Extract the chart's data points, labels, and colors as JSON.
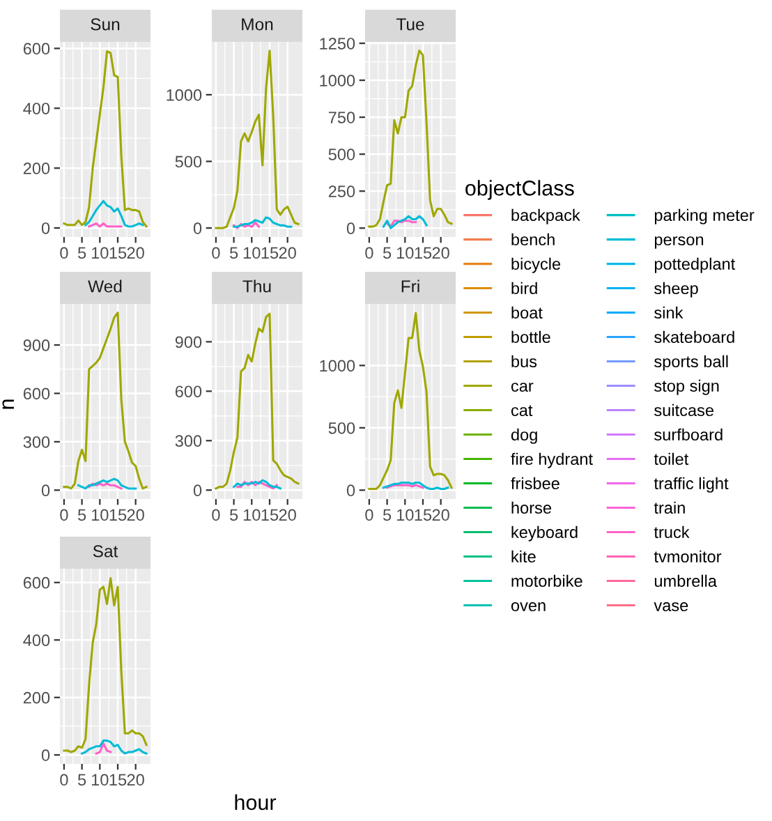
{
  "chart_data": [
    {
      "type": "line",
      "title": "Sun",
      "x": [
        0,
        1,
        2,
        3,
        4,
        5,
        6,
        7,
        8,
        9,
        10,
        11,
        12,
        13,
        14,
        15,
        16,
        17,
        18,
        19,
        20,
        21,
        22,
        23
      ],
      "xlim": [
        -1.15,
        24.15
      ],
      "xticks": [
        0,
        5,
        10,
        15,
        20
      ],
      "ylim": [
        -30,
        622
      ],
      "yticks": [
        0,
        200,
        400,
        600
      ],
      "grid": true,
      "series": [
        {
          "color": "#FF61C7",
          "values": [
            null,
            null,
            null,
            null,
            null,
            null,
            null,
            5,
            10,
            15,
            5,
            15,
            5,
            5,
            5,
            5,
            5,
            null,
            null,
            null,
            null,
            null,
            null,
            null
          ]
        },
        {
          "color": "#00BCD6",
          "values": [
            null,
            null,
            null,
            null,
            null,
            null,
            10,
            20,
            40,
            60,
            75,
            90,
            75,
            70,
            55,
            65,
            40,
            10,
            5,
            5,
            10,
            15,
            10,
            null
          ]
        },
        {
          "color": "#9FA700",
          "values": [
            15,
            10,
            10,
            10,
            25,
            10,
            20,
            70,
            200,
            290,
            380,
            470,
            590,
            585,
            510,
            505,
            240,
            60,
            65,
            60,
            60,
            55,
            20,
            5
          ]
        }
      ]
    },
    {
      "type": "line",
      "title": "Mon",
      "x": [
        0,
        1,
        2,
        3,
        4,
        5,
        6,
        7,
        8,
        9,
        10,
        11,
        12,
        13,
        14,
        15,
        16,
        17,
        18,
        19,
        20,
        21,
        22,
        23
      ],
      "xlim": [
        -1.15,
        24.15
      ],
      "xticks": [
        0,
        5,
        10,
        15,
        20
      ],
      "ylim": [
        -67,
        1397
      ],
      "yticks": [
        0,
        500,
        1000
      ],
      "grid": true,
      "series": [
        {
          "color": "#FF61C7",
          "values": [
            null,
            null,
            null,
            null,
            null,
            20,
            0,
            30,
            10,
            20,
            10,
            40,
            10,
            null,
            null,
            null,
            null,
            null,
            null,
            null,
            null,
            null,
            null,
            null
          ]
        },
        {
          "color": "#00BCD6",
          "values": [
            null,
            null,
            null,
            null,
            null,
            10,
            10,
            20,
            30,
            30,
            40,
            60,
            50,
            40,
            80,
            70,
            40,
            30,
            20,
            20,
            10,
            10,
            null,
            null
          ]
        },
        {
          "color": "#9FA700",
          "values": [
            0,
            0,
            0,
            10,
            80,
            150,
            280,
            650,
            710,
            650,
            720,
            800,
            850,
            470,
            1050,
            1330,
            840,
            140,
            100,
            140,
            160,
            100,
            40,
            30
          ]
        }
      ]
    },
    {
      "type": "line",
      "title": "Tue",
      "x": [
        0,
        1,
        2,
        3,
        4,
        5,
        6,
        7,
        8,
        9,
        10,
        11,
        12,
        13,
        14,
        15,
        16,
        17,
        18,
        19,
        20,
        21,
        22,
        23
      ],
      "xlim": [
        -1.15,
        24.15
      ],
      "xticks": [
        0,
        5,
        10,
        15,
        20
      ],
      "ylim": [
        -60,
        1260
      ],
      "yticks": [
        0,
        250,
        500,
        750,
        1000,
        1250
      ],
      "grid": true,
      "series": [
        {
          "color": "#FF61C7",
          "values": [
            null,
            null,
            null,
            null,
            null,
            30,
            10,
            50,
            50,
            40,
            50,
            50,
            40,
            40,
            null,
            null,
            null,
            null,
            null,
            null,
            null,
            null,
            null,
            null
          ]
        },
        {
          "color": "#00BCD6",
          "values": [
            null,
            null,
            null,
            null,
            10,
            50,
            0,
            20,
            40,
            50,
            60,
            80,
            60,
            60,
            80,
            60,
            20,
            null,
            null,
            null,
            null,
            null,
            null,
            null
          ]
        },
        {
          "color": "#9FA700",
          "values": [
            10,
            10,
            20,
            60,
            180,
            290,
            300,
            730,
            640,
            750,
            750,
            930,
            960,
            1100,
            1200,
            1170,
            720,
            190,
            80,
            130,
            130,
            90,
            40,
            30
          ]
        }
      ]
    },
    {
      "type": "line",
      "title": "Wed",
      "x": [
        0,
        1,
        2,
        3,
        4,
        5,
        6,
        7,
        8,
        9,
        10,
        11,
        12,
        13,
        14,
        15,
        16,
        17,
        18,
        19,
        20,
        21,
        22,
        23
      ],
      "xlim": [
        -1.15,
        24.15
      ],
      "xticks": [
        0,
        5,
        10,
        15,
        20
      ],
      "ylim": [
        -55,
        1155
      ],
      "yticks": [
        0,
        300,
        600,
        900
      ],
      "grid": true,
      "series": [
        {
          "color": "#FF61C7",
          "values": [
            null,
            null,
            null,
            null,
            null,
            null,
            null,
            20,
            40,
            30,
            40,
            30,
            40,
            30,
            30,
            20,
            10,
            null,
            null,
            null,
            null,
            null,
            null,
            null
          ]
        },
        {
          "color": "#00BCD6",
          "values": [
            null,
            null,
            null,
            null,
            30,
            20,
            10,
            30,
            30,
            40,
            50,
            60,
            50,
            60,
            70,
            60,
            30,
            20,
            10,
            10,
            10,
            null,
            null,
            null
          ]
        },
        {
          "color": "#9FA700",
          "values": [
            20,
            20,
            10,
            40,
            180,
            250,
            180,
            750,
            770,
            790,
            820,
            880,
            940,
            1000,
            1070,
            1100,
            560,
            300,
            240,
            170,
            150,
            70,
            10,
            20
          ]
        }
      ]
    },
    {
      "type": "line",
      "title": "Thu",
      "x": [
        0,
        1,
        2,
        3,
        4,
        5,
        6,
        7,
        8,
        9,
        10,
        11,
        12,
        13,
        14,
        15,
        16,
        17,
        18,
        19,
        20,
        21,
        22,
        23
      ],
      "xlim": [
        -1.15,
        24.15
      ],
      "xticks": [
        0,
        5,
        10,
        15,
        20
      ],
      "ylim": [
        -54,
        1130
      ],
      "yticks": [
        0,
        300,
        600,
        900
      ],
      "grid": true,
      "series": [
        {
          "color": "#FF61C7",
          "values": [
            null,
            null,
            null,
            null,
            null,
            null,
            20,
            20,
            50,
            30,
            50,
            30,
            50,
            40,
            30,
            20,
            10,
            30,
            null,
            null,
            null,
            null,
            null,
            null
          ]
        },
        {
          "color": "#00BCD6",
          "values": [
            null,
            null,
            null,
            null,
            null,
            20,
            40,
            30,
            40,
            40,
            40,
            50,
            40,
            60,
            50,
            30,
            20,
            20,
            10,
            null,
            null,
            null,
            null,
            null
          ]
        },
        {
          "color": "#9FA700",
          "values": [
            10,
            20,
            20,
            40,
            120,
            230,
            320,
            720,
            740,
            820,
            780,
            890,
            980,
            960,
            1050,
            1070,
            180,
            160,
            120,
            90,
            80,
            70,
            50,
            40
          ]
        }
      ]
    },
    {
      "type": "line",
      "title": "Fri",
      "x": [
        0,
        1,
        2,
        3,
        4,
        5,
        6,
        7,
        8,
        9,
        10,
        11,
        12,
        13,
        14,
        15,
        16,
        17,
        18,
        19,
        20,
        21,
        22,
        23
      ],
      "xlim": [
        -1.15,
        24.15
      ],
      "xticks": [
        0,
        5,
        10,
        15,
        20
      ],
      "ylim": [
        -71,
        1494
      ],
      "yticks": [
        0,
        500,
        1000
      ],
      "grid": true,
      "series": [
        {
          "color": "#FF61C7",
          "values": [
            null,
            null,
            null,
            null,
            null,
            20,
            30,
            40,
            40,
            40,
            40,
            40,
            30,
            40,
            30,
            20,
            null,
            null,
            null,
            null,
            null,
            null,
            null,
            null
          ]
        },
        {
          "color": "#00BCD6",
          "values": [
            null,
            null,
            null,
            null,
            20,
            30,
            40,
            50,
            50,
            60,
            60,
            60,
            50,
            60,
            60,
            40,
            20,
            10,
            10,
            20,
            10,
            10,
            20,
            null
          ]
        },
        {
          "color": "#9FA700",
          "values": [
            10,
            10,
            10,
            40,
            100,
            160,
            240,
            700,
            800,
            660,
            940,
            1220,
            1220,
            1420,
            1120,
            990,
            790,
            190,
            120,
            130,
            130,
            120,
            80,
            20
          ]
        }
      ]
    },
    {
      "type": "line",
      "title": "Sat",
      "x": [
        0,
        1,
        2,
        3,
        4,
        5,
        6,
        7,
        8,
        9,
        10,
        11,
        12,
        13,
        14,
        15,
        16,
        17,
        18,
        19,
        20,
        21,
        22,
        23
      ],
      "xlim": [
        -1.15,
        24.15
      ],
      "xticks": [
        0,
        5,
        10,
        15,
        20
      ],
      "ylim": [
        -31,
        648
      ],
      "yticks": [
        0,
        200,
        400,
        600
      ],
      "grid": true,
      "series": [
        {
          "color": "#FF61C7",
          "values": [
            null,
            null,
            null,
            null,
            null,
            null,
            null,
            null,
            null,
            5,
            10,
            40,
            15,
            10,
            null,
            null,
            null,
            null,
            null,
            null,
            null,
            null,
            null,
            null
          ]
        },
        {
          "color": "#00BCD6",
          "values": [
            null,
            null,
            null,
            null,
            null,
            5,
            10,
            20,
            25,
            30,
            30,
            50,
            50,
            45,
            30,
            35,
            15,
            5,
            10,
            10,
            15,
            20,
            10,
            5
          ]
        },
        {
          "color": "#9FA700",
          "values": [
            15,
            15,
            10,
            15,
            30,
            25,
            55,
            245,
            390,
            455,
            575,
            585,
            525,
            615,
            520,
            585,
            290,
            75,
            75,
            85,
            75,
            75,
            65,
            35
          ]
        }
      ]
    },
    {
      "type": "other",
      "xlabel": "hour",
      "ylabel": "n",
      "legend_title": "objectClass",
      "legend": "right",
      "series": [
        {
          "name": "backpack",
          "color": "#F8766D"
        },
        {
          "name": "bench",
          "color": "#F07E4E"
        },
        {
          "name": "bicycle",
          "color": "#E7851E"
        },
        {
          "name": "bird",
          "color": "#DD8D00"
        },
        {
          "name": "boat",
          "color": "#D09400"
        },
        {
          "name": "bottle",
          "color": "#C29B00"
        },
        {
          "name": "bus",
          "color": "#B2A100"
        },
        {
          "name": "car",
          "color": "#9FA700"
        },
        {
          "name": "cat",
          "color": "#89AC00"
        },
        {
          "name": "dog",
          "color": "#6DB100"
        },
        {
          "name": "fire hydrant",
          "color": "#45B500"
        },
        {
          "name": "frisbee",
          "color": "#00B927"
        },
        {
          "name": "horse",
          "color": "#00BC51"
        },
        {
          "name": "keyboard",
          "color": "#00BE6E"
        },
        {
          "name": "kite",
          "color": "#00C087"
        },
        {
          "name": "motorbike",
          "color": "#00C19D"
        },
        {
          "name": "oven",
          "color": "#00C0B2"
        },
        {
          "name": "parking meter",
          "color": "#00BFC4"
        },
        {
          "name": "person",
          "color": "#00BCD6"
        },
        {
          "name": "pottedplant",
          "color": "#00B8E5"
        },
        {
          "name": "sheep",
          "color": "#00B3F2"
        },
        {
          "name": "sink",
          "color": "#00ABFC"
        },
        {
          "name": "skateboard",
          "color": "#29A3FF"
        },
        {
          "name": "sports ball",
          "color": "#7398FF"
        },
        {
          "name": "stop sign",
          "color": "#9C8DFF"
        },
        {
          "name": "suitcase",
          "color": "#BA82FF"
        },
        {
          "name": "surfboard",
          "color": "#D277FF"
        },
        {
          "name": "toilet",
          "color": "#E46DF5"
        },
        {
          "name": "traffic light",
          "color": "#F166E8"
        },
        {
          "name": "train",
          "color": "#FA62D9"
        },
        {
          "name": "truck",
          "color": "#FF61C7"
        },
        {
          "name": "tvmonitor",
          "color": "#FF63B4"
        },
        {
          "name": "umbrella",
          "color": "#FF689E"
        },
        {
          "name": "vase",
          "color": "#FD6F87"
        }
      ]
    }
  ]
}
